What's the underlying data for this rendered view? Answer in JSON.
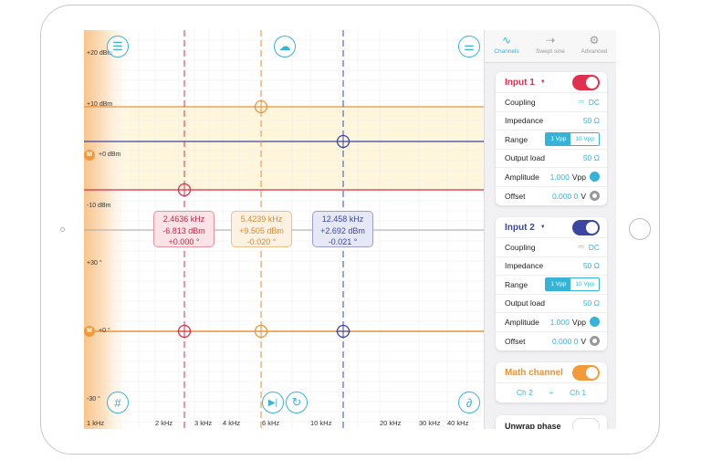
{
  "plot": {
    "y_labels": [
      "+20 dBm",
      "+10 dBm",
      "+0 dBm",
      "-10 dBm",
      "+30 °",
      "+0 °",
      "-30 °"
    ],
    "x_labels": [
      "1 kHz",
      "2 kHz",
      "3 kHz",
      "4 kHz",
      "6 kHz",
      "10 kHz",
      "20 kHz",
      "30 kHz",
      "40 kHz"
    ],
    "math_marker": "M",
    "cursors": [
      {
        "color": "#d8304a",
        "freq": "2.4636 kHz",
        "mag": "-6.813 dBm",
        "phase": "+0.000 °"
      },
      {
        "color": "#e8943a",
        "freq": "5.4239 kHz",
        "mag": "+9.505 dBm",
        "phase": "-0.020 °"
      },
      {
        "color": "#3c46a0",
        "freq": "12.458 kHz",
        "mag": "+2.692 dBm",
        "phase": "-0.021 °"
      }
    ]
  },
  "tabs": [
    {
      "label": "Channels",
      "icon": "sine-wave-icon",
      "active": true
    },
    {
      "label": "Swept sine",
      "icon": "swept-sine-icon"
    },
    {
      "label": "Advanced",
      "icon": "gear-icon"
    }
  ],
  "input1": {
    "title": "Input 1",
    "color": "#e0304e",
    "coupling_label": "Coupling",
    "coupling": "DC",
    "impedance_label": "Impedance",
    "impedance": "50 Ω",
    "range_label": "Range",
    "range_opts": [
      "1 Vpp",
      "10 Vpp"
    ],
    "output_load_label": "Output load",
    "output_load": "50 Ω",
    "amplitude_label": "Amplitude",
    "amplitude": "1.000",
    "amplitude_unit": "Vpp",
    "offset_label": "Offset",
    "offset": "0.000 0",
    "offset_unit": "V"
  },
  "input2": {
    "title": "Input 2",
    "color": "#3c46a0",
    "coupling_label": "Coupling",
    "coupling": "DC",
    "impedance_label": "Impedance",
    "impedance": "50 Ω",
    "range_label": "Range",
    "range_opts": [
      "1 Vpp",
      "10 Vpp"
    ],
    "output_load_label": "Output load",
    "output_load": "50 Ω",
    "amplitude_label": "Amplitude",
    "amplitude": "1.000",
    "amplitude_unit": "Vpp",
    "offset_label": "Offset",
    "offset": "0.000 0",
    "offset_unit": "V"
  },
  "math": {
    "title": "Math channel",
    "a": "Ch 2",
    "op": "÷",
    "b": "Ch 1"
  },
  "unwrap": {
    "label": "Unwrap phase"
  }
}
